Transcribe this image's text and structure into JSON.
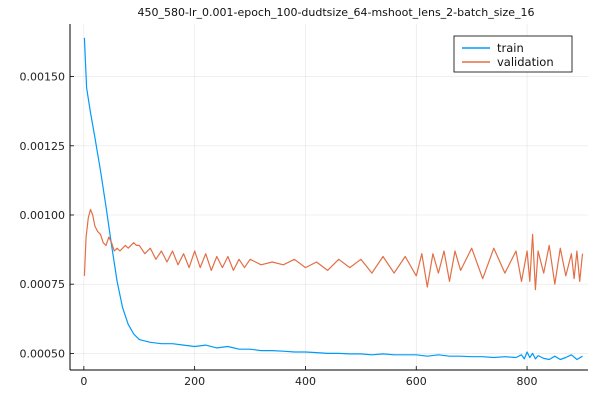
{
  "chart_data": {
    "type": "line",
    "title": "450_580-lr_0.001-epoch_100-dudtsize_64-mshoot_lens_2-batch_size_16",
    "xlabel": "",
    "ylabel": "",
    "xlim": [
      -25,
      910
    ],
    "ylim": [
      0.00044,
      0.00169
    ],
    "grid": true,
    "legend_position": "top-right",
    "x_ticks": [
      0,
      200,
      400,
      600,
      800
    ],
    "x_tick_labels": [
      "0",
      "200",
      "400",
      "600",
      "800"
    ],
    "y_ticks": [
      0.0005,
      0.00075,
      0.001,
      0.00125,
      0.0015
    ],
    "y_tick_labels": [
      "0.00050",
      "0.00075",
      "0.00100",
      "0.00125",
      "0.00150"
    ],
    "series": [
      {
        "name": "train",
        "color": "#009af9",
        "x": [
          1,
          3,
          5,
          8,
          12,
          20,
          30,
          40,
          50,
          60,
          70,
          80,
          90,
          100,
          110,
          120,
          140,
          160,
          180,
          200,
          220,
          240,
          260,
          280,
          300,
          320,
          340,
          360,
          380,
          400,
          420,
          440,
          460,
          480,
          500,
          520,
          540,
          560,
          580,
          600,
          620,
          640,
          660,
          680,
          700,
          720,
          740,
          760,
          780,
          790,
          795,
          800,
          805,
          810,
          815,
          820,
          830,
          840,
          850,
          860,
          870,
          880,
          890,
          900
        ],
        "y": [
          0.00164,
          0.00155,
          0.00146,
          0.00142,
          0.00137,
          0.00128,
          0.00116,
          0.00103,
          0.00089,
          0.00076,
          0.000665,
          0.000605,
          0.00057,
          0.00055,
          0.000545,
          0.00054,
          0.000535,
          0.000535,
          0.00053,
          0.000525,
          0.00053,
          0.00052,
          0.000525,
          0.000515,
          0.000515,
          0.00051,
          0.00051,
          0.000508,
          0.000505,
          0.000505,
          0.000503,
          0.0005,
          0.0005,
          0.000498,
          0.000498,
          0.000495,
          0.000498,
          0.000495,
          0.000495,
          0.000495,
          0.00049,
          0.000495,
          0.00049,
          0.00049,
          0.000488,
          0.000488,
          0.000485,
          0.000488,
          0.000485,
          0.000495,
          0.00048,
          0.000505,
          0.000485,
          0.0005,
          0.00048,
          0.000492,
          0.000482,
          0.000478,
          0.00049,
          0.000478,
          0.000485,
          0.000495,
          0.000478,
          0.00049
        ]
      },
      {
        "name": "validation",
        "color": "#e26f46",
        "x": [
          1,
          4,
          8,
          12,
          16,
          20,
          25,
          30,
          35,
          40,
          45,
          50,
          55,
          60,
          65,
          70,
          75,
          80,
          85,
          90,
          95,
          100,
          110,
          120,
          130,
          140,
          150,
          160,
          170,
          180,
          190,
          200,
          210,
          220,
          230,
          240,
          250,
          260,
          270,
          280,
          290,
          300,
          320,
          340,
          360,
          380,
          400,
          420,
          440,
          460,
          480,
          500,
          520,
          540,
          560,
          580,
          600,
          610,
          620,
          630,
          640,
          650,
          660,
          670,
          680,
          700,
          720,
          740,
          760,
          780,
          790,
          800,
          805,
          810,
          815,
          820,
          830,
          840,
          850,
          860,
          870,
          880,
          885,
          890,
          895,
          900
        ],
        "y": [
          0.00078,
          0.00092,
          0.00099,
          0.00102,
          0.001,
          0.00096,
          0.00094,
          0.00093,
          0.0009,
          0.00089,
          0.00092,
          0.0009,
          0.00087,
          0.00088,
          0.00087,
          0.00088,
          0.00089,
          0.00088,
          0.00089,
          0.0009,
          0.00089,
          0.00089,
          0.00086,
          0.00088,
          0.00084,
          0.00087,
          0.00083,
          0.00087,
          0.00082,
          0.00086,
          0.00081,
          0.00087,
          0.00081,
          0.00086,
          0.0008,
          0.00085,
          0.00081,
          0.00085,
          0.0008,
          0.00084,
          0.00081,
          0.00084,
          0.00082,
          0.00083,
          0.00082,
          0.00084,
          0.00081,
          0.00083,
          0.0008,
          0.00084,
          0.00081,
          0.00084,
          0.00079,
          0.00085,
          0.00079,
          0.00085,
          0.00078,
          0.00086,
          0.00074,
          0.00086,
          0.00079,
          0.00087,
          0.00076,
          0.00087,
          0.0008,
          0.00088,
          0.00077,
          0.00088,
          0.00079,
          0.00087,
          0.00076,
          0.00087,
          0.00076,
          0.00093,
          0.00073,
          0.00087,
          0.00079,
          0.00089,
          0.00075,
          0.00088,
          0.00078,
          0.00086,
          0.00077,
          0.00087,
          0.00076,
          0.00086
        ]
      }
    ]
  }
}
